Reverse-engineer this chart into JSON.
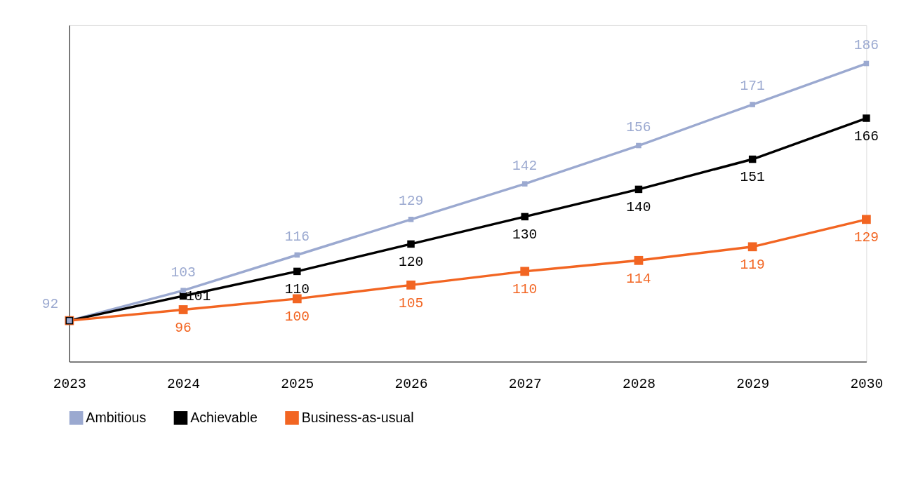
{
  "chart_data": {
    "type": "line",
    "categories": [
      "2023",
      "2024",
      "2025",
      "2026",
      "2027",
      "2028",
      "2029",
      "2030"
    ],
    "series": [
      {
        "name": "Ambitious",
        "color": "#9ba9d0",
        "values": [
          92,
          103,
          116,
          129,
          142,
          156,
          171,
          186
        ],
        "value_labels": [
          "92",
          "103",
          "116",
          "129",
          "142",
          "156",
          "171",
          "186"
        ]
      },
      {
        "name": "Achievable",
        "color": "#000000",
        "values": [
          92,
          101,
          110,
          120,
          130,
          140,
          151,
          166
        ],
        "value_labels": [
          null,
          "101",
          "110",
          "120",
          "130",
          "140",
          "151",
          "166"
        ]
      },
      {
        "name": "Business-as-usual",
        "color": "#f26522",
        "values": [
          92,
          96,
          100,
          105,
          110,
          114,
          119,
          129
        ],
        "value_labels": [
          null,
          "96",
          "100",
          "105",
          "110",
          "114",
          "119",
          "129"
        ]
      }
    ],
    "ylim": [
      77,
      200
    ],
    "tick_labels": "x",
    "grid": false,
    "marker": "square",
    "line_style": "solid",
    "legend": "bottom"
  }
}
